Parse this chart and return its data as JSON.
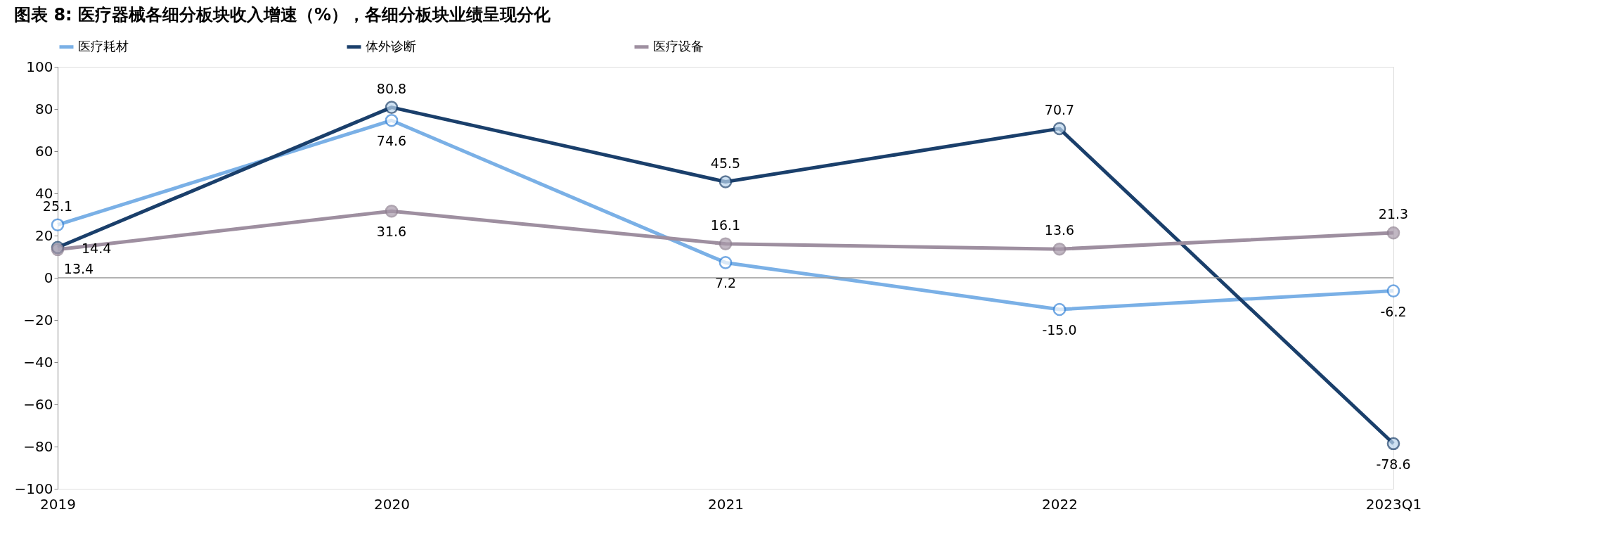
{
  "chart_data": {
    "type": "line",
    "title": "图表 8: 医疗器械各细分板块收入增速（%），各细分板块业绩呈现分化",
    "categories": [
      "2019",
      "2020",
      "2021",
      "2022",
      "2023Q1"
    ],
    "series": [
      {
        "name": "医疗耗材",
        "color": "#7ab0e6",
        "values": [
          25.1,
          74.6,
          7.2,
          -15.0,
          -6.2
        ],
        "value_labels": [
          "25.1",
          "74.6",
          "7.2",
          "-15.0",
          "-6.2"
        ]
      },
      {
        "name": "体外诊断",
        "color": "#1a3f6b",
        "values": [
          14.4,
          80.8,
          45.5,
          70.7,
          -78.6
        ],
        "value_labels": [
          "14.4",
          "80.8",
          "45.5",
          "70.7",
          "-78.6"
        ]
      },
      {
        "name": "医疗设备",
        "color": "#9e8fa0",
        "values": [
          13.4,
          31.6,
          16.1,
          13.6,
          21.3
        ],
        "value_labels": [
          "13.4",
          "31.6",
          "16.1",
          "13.6",
          "21.3"
        ]
      }
    ],
    "ylim": [
      -100,
      100
    ],
    "yticks": [
      -100,
      -80,
      -60,
      -40,
      -20,
      0,
      20,
      40,
      60,
      80,
      100
    ],
    "ref_lines": [
      {
        "axis": "y",
        "value": 0,
        "color": "#999999"
      }
    ],
    "grid": false,
    "legend": "top",
    "marker": "circle",
    "line_style": "solid"
  }
}
